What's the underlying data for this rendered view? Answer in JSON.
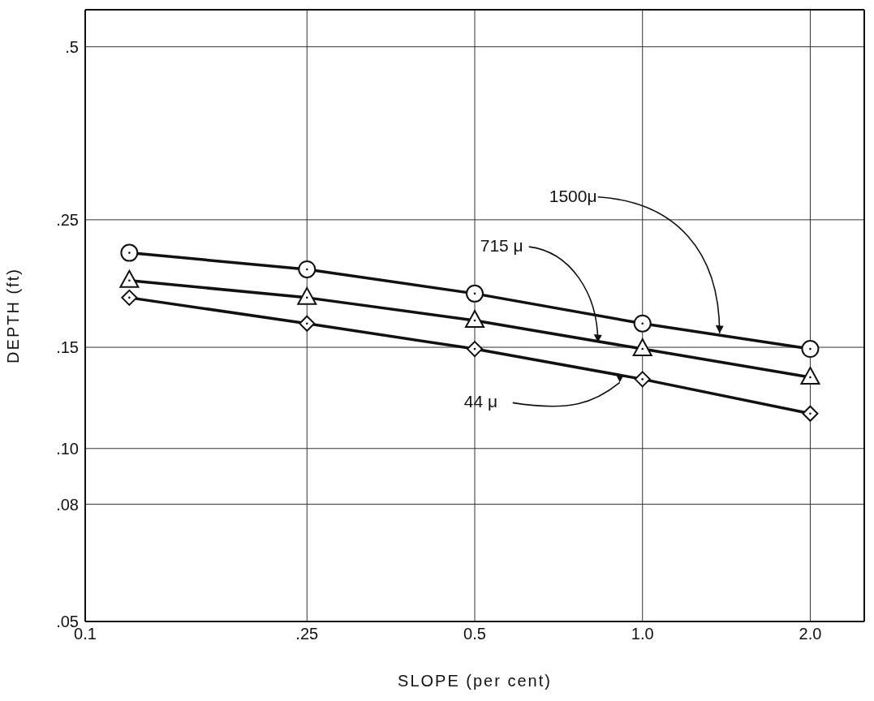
{
  "chart_data": {
    "type": "line",
    "xlabel": "SLOPE (per cent)",
    "ylabel": "DEPTH (ft)",
    "log": "xy",
    "grid": true,
    "line_style": "solid",
    "x": [
      0.12,
      0.25,
      0.5,
      1.0,
      2.0
    ],
    "xlim": [
      0.1,
      2.5
    ],
    "xticks": [
      {
        "value": 0.1,
        "label": "0.1"
      },
      {
        "value": 0.25,
        "label": ".25"
      },
      {
        "value": 0.5,
        "label": "0.5"
      },
      {
        "value": 1.0,
        "label": "1.0"
      },
      {
        "value": 2.0,
        "label": "2.0"
      }
    ],
    "ylim": [
      0.05,
      0.58
    ],
    "yticks": [
      {
        "value": 0.05,
        "label": ".05"
      },
      {
        "value": 0.08,
        "label": ".08"
      },
      {
        "value": 0.1,
        "label": ".10"
      },
      {
        "value": 0.15,
        "label": ".15"
      },
      {
        "value": 0.25,
        "label": ".25"
      },
      {
        "value": 0.5,
        "label": ".5"
      }
    ],
    "series": [
      {
        "name": "1500μ",
        "color": "#111111",
        "marker": "circle",
        "values": [
          0.219,
          0.205,
          0.186,
          0.165,
          0.149
        ]
      },
      {
        "name": "715 μ",
        "color": "#111111",
        "marker": "triangle",
        "values": [
          0.196,
          0.183,
          0.167,
          0.149,
          0.133
        ]
      },
      {
        "name": "44 μ",
        "color": "#111111",
        "marker": "diamond",
        "values": [
          0.183,
          0.165,
          0.149,
          0.132,
          0.115
        ]
      }
    ]
  }
}
